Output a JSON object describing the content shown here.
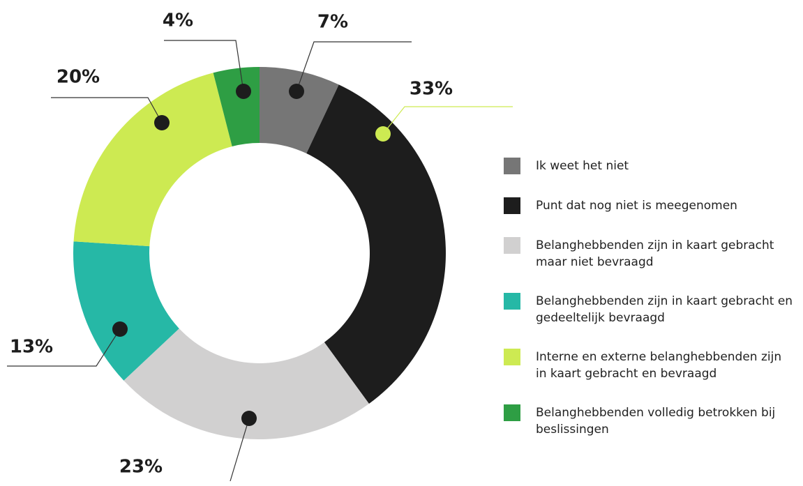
{
  "chart_data": {
    "type": "donut",
    "categories": [
      "Ik weet het niet",
      "Punt dat nog niet is meegenomen",
      "Belanghebbenden zijn in kaart gebracht maar niet bevraagd",
      "Belanghebbenden zijn in kaart gebracht en gedeeltelijk bevraagd",
      "Interne en externe belanghebbenden zijn in kaart gebracht en bevraagd",
      "Belanghebbenden volledig betrokken bij beslissingen"
    ],
    "values": [
      7,
      33,
      23,
      13,
      20,
      4
    ],
    "value_labels": [
      "7%",
      "33%",
      "23%",
      "13%",
      "20%",
      "4%"
    ],
    "colors": [
      "#767676",
      "#1d1d1d",
      "#d1d0d0",
      "#26b8a6",
      "#cdea52",
      "#2e9e44"
    ]
  }
}
